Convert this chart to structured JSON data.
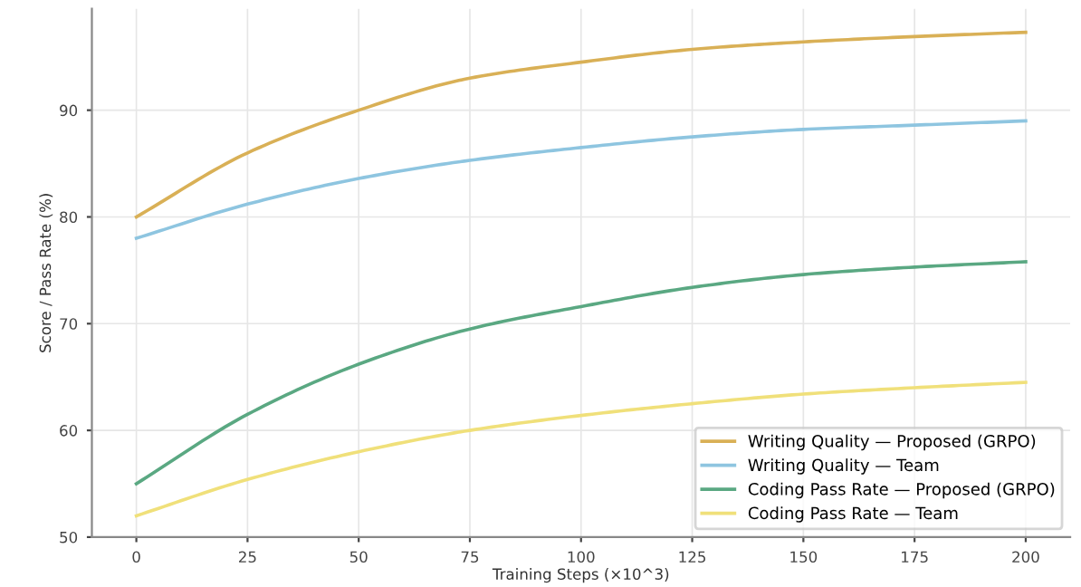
{
  "chart_data": {
    "type": "line",
    "xlabel": "Training Steps (×10^3)",
    "ylabel": "Score / Pass Rate (%)",
    "x": [
      0,
      25,
      50,
      75,
      100,
      125,
      150,
      175,
      200
    ],
    "series": [
      {
        "name": "Writing Quality — Proposed (GRPO)",
        "color": "#d9b056",
        "values": [
          80,
          86,
          90,
          93,
          94.5,
          95.7,
          96.4,
          96.9,
          97.3
        ]
      },
      {
        "name": "Writing Quality — Team",
        "color": "#8ec5e0",
        "values": [
          78,
          81.2,
          83.6,
          85.3,
          86.5,
          87.5,
          88.2,
          88.6,
          89.0
        ]
      },
      {
        "name": "Coding Pass Rate — Proposed (GRPO)",
        "color": "#5aa882",
        "values": [
          55,
          61.5,
          66.2,
          69.5,
          71.6,
          73.4,
          74.6,
          75.3,
          75.8
        ]
      },
      {
        "name": "Coding Pass Rate — Team",
        "color": "#f0e07a",
        "values": [
          52,
          55.4,
          58,
          60,
          61.4,
          62.5,
          63.4,
          64.0,
          64.5
        ]
      }
    ],
    "xlim": [
      -10,
      210
    ],
    "ylim": [
      50,
      99.5
    ],
    "xticks": [
      0,
      25,
      50,
      75,
      100,
      125,
      150,
      175,
      200
    ],
    "yticks": [
      50,
      60,
      70,
      80,
      90
    ],
    "grid": true,
    "legend": "bottom right",
    "marker": "none",
    "line_style": "solid"
  }
}
